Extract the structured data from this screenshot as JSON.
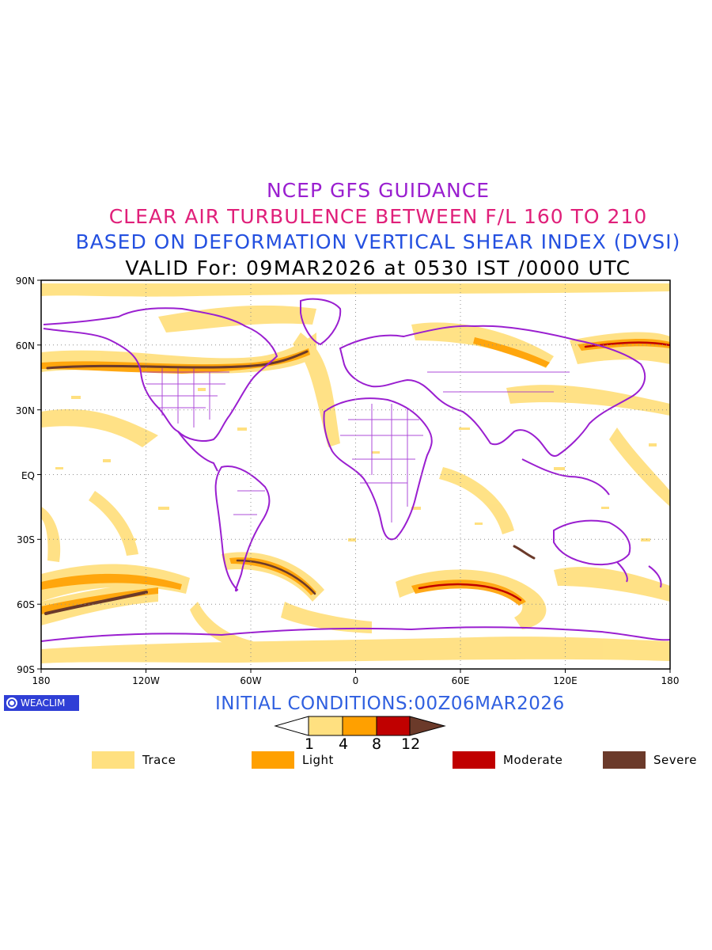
{
  "titles": {
    "line1": "NCEP GFS GUIDANCE",
    "line2": "CLEAR AIR TURBULENCE BETWEEN F/L 160 TO 210",
    "line3": "BASED ON DEFORMATION VERTICAL SHEAR INDEX (DVSI)",
    "line4": "VALID For: 09MAR2026 at 0530 IST /0000 UTC"
  },
  "axes": {
    "lat_labels": [
      "90N",
      "60N",
      "30N",
      "EQ",
      "30S",
      "60S",
      "90S"
    ],
    "lon_labels": [
      "180",
      "120W",
      "60W",
      "0",
      "60E",
      "120E",
      "180"
    ]
  },
  "initial_conditions": "INITIAL CONDITIONS:00Z06MAR2026",
  "logo_text": "WEACLIM",
  "colorbar": {
    "thresholds": [
      "1",
      "4",
      "8",
      "12"
    ],
    "colors": [
      "#ffffff",
      "#ffe080",
      "#ffa000",
      "#c00000",
      "#6b3a2a"
    ]
  },
  "legend": [
    {
      "label": "Trace",
      "color": "#ffe080"
    },
    {
      "label": "Light",
      "color": "#ffa000"
    },
    {
      "label": "Moderate",
      "color": "#c00000"
    },
    {
      "label": "Severe",
      "color": "#6b3a2a"
    }
  ],
  "colors": {
    "coastline": "#9a1fd0",
    "title1": "#9a1fd0",
    "title2": "#e0207a",
    "title3": "#2450e0"
  }
}
